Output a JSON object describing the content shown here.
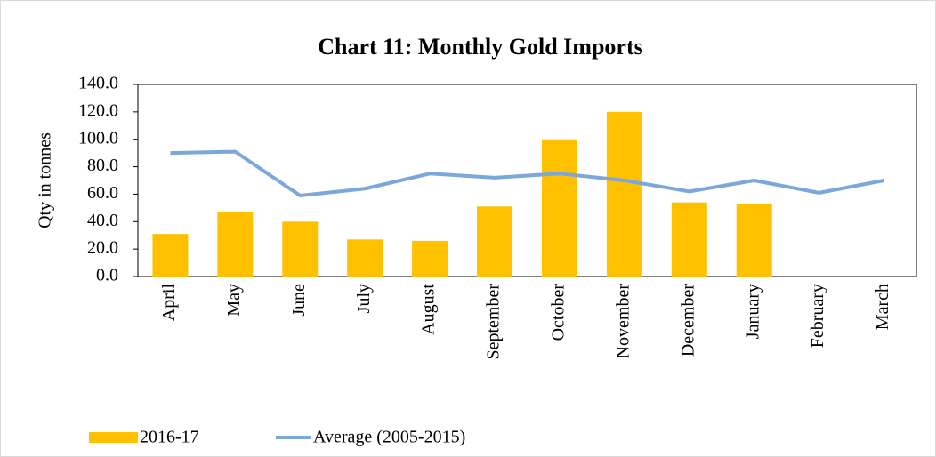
{
  "chart_data": {
    "type": "bar-line",
    "title": "Chart 11: Monthly Gold Imports",
    "y_label": "Qty in tonnes",
    "categories": [
      "April",
      "May",
      "June",
      "July",
      "August",
      "September",
      "October",
      "November",
      "December",
      "January",
      "February",
      "March"
    ],
    "series": [
      {
        "name": "2016-17",
        "type": "bar",
        "color": "#ffc000",
        "values": [
          31,
          47,
          40,
          27,
          26,
          51,
          100,
          120,
          54,
          53,
          null,
          null
        ]
      },
      {
        "name": "Average (2005-2015)",
        "type": "line",
        "color": "#7ba7da",
        "values": [
          90,
          91,
          59,
          64,
          75,
          72,
          75,
          70,
          62,
          70,
          61,
          70
        ]
      }
    ],
    "ylim": [
      0,
      140
    ],
    "yticks": [
      {
        "value": 0,
        "label": "0.0"
      },
      {
        "value": 20,
        "label": "20.0"
      },
      {
        "value": 40,
        "label": "40.0"
      },
      {
        "value": 60,
        "label": "60.0"
      },
      {
        "value": 80,
        "label": "80.0"
      },
      {
        "value": 100,
        "label": "100.0"
      },
      {
        "value": 120,
        "label": "120.0"
      },
      {
        "value": 140,
        "label": "140.0"
      }
    ],
    "legend": "bottom-left"
  }
}
